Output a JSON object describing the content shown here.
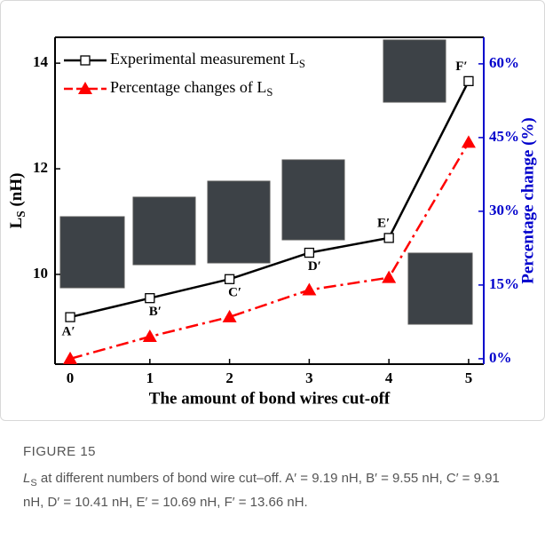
{
  "chart_data": {
    "type": "line",
    "x": [
      0,
      1,
      2,
      3,
      4,
      5
    ],
    "series": [
      {
        "name": "Experimental measurement LS",
        "color": "#000000",
        "marker": "square",
        "values": [
          9.19,
          9.55,
          9.91,
          10.41,
          10.69,
          13.66
        ]
      },
      {
        "name": "Percentage changes of LS",
        "color": "#ff0000",
        "marker": "triangle",
        "axis": "y2",
        "values": [
          0,
          4.5,
          8.5,
          14,
          16.5,
          44
        ]
      }
    ],
    "point_labels": [
      "A′",
      "B′",
      "C′",
      "D′",
      "E′",
      "F′"
    ],
    "xlabel": "The amount of bond wires cut-off",
    "ylabel": "LS (nH)",
    "y2label": "Percentage change (%)",
    "xlim": [
      -0.19,
      5.19
    ],
    "xticks": [
      0,
      1,
      2,
      3,
      4,
      5
    ],
    "ylim": [
      8.3,
      14.49
    ],
    "yticks": [
      10,
      12,
      14
    ],
    "y2lim": [
      -1.1,
      65.4
    ],
    "y2ticks": [
      {
        "value": 0,
        "label": "0%"
      },
      {
        "value": 15,
        "label": "15%"
      },
      {
        "value": 30,
        "label": "30%"
      },
      {
        "value": 45,
        "label": "45%"
      },
      {
        "value": 60,
        "label": "60%"
      }
    ],
    "y2color": "#0000cc",
    "legend": "upper left"
  },
  "figure": {
    "label": "FIGURE 15",
    "caption": "LS at different numbers of bond wire cut–off. A′ = 9.19 nH, B′ = 9.55 nH, C′ = 9.91 nH, D′ = 10.41 nH, E′ = 10.69 nH, F′ = 13.66 nH."
  }
}
